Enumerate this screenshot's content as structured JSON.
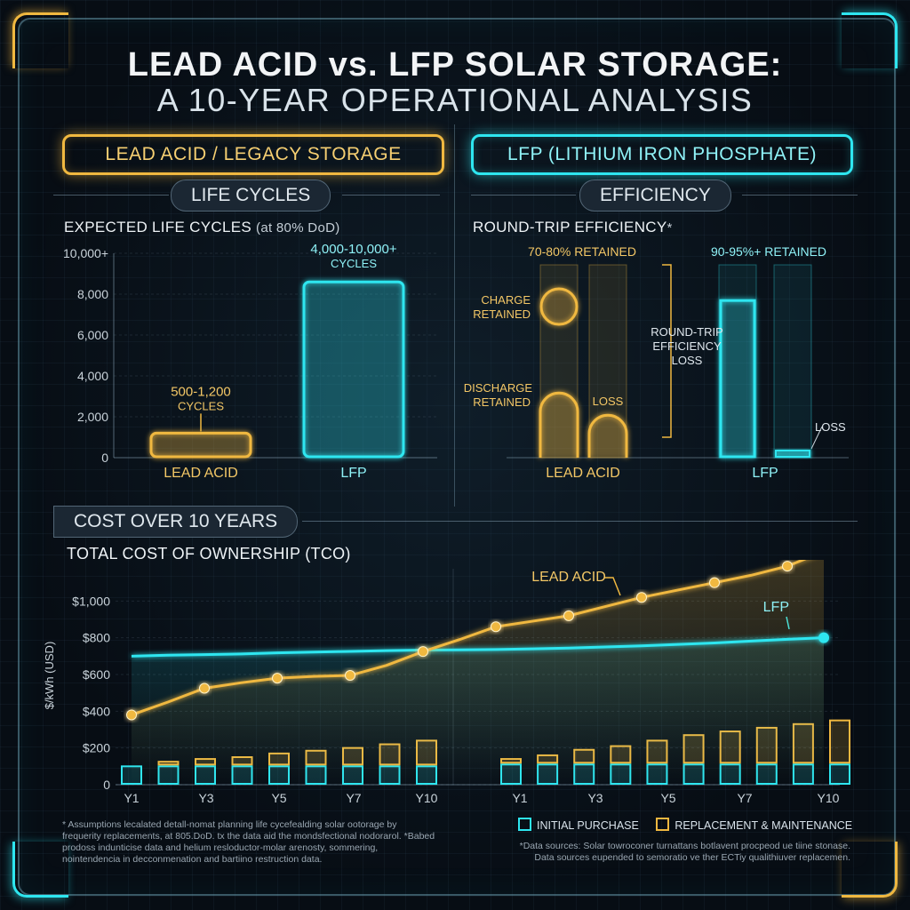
{
  "title": {
    "line1": "LEAD ACID vs. LFP SOLAR STORAGE:",
    "line2": "A 10-YEAR OPERATIONAL ANALYSIS"
  },
  "headers": {
    "lead_acid": "LEAD ACID / LEGACY STORAGE",
    "lfp": "LFP (LITHIUM IRON PHOSPHATE)"
  },
  "sections": {
    "life_cycles": "LIFE CYCLES",
    "efficiency": "EFFICIENCY",
    "cost": "COST OVER 10 YEARS"
  },
  "colors": {
    "lead_acid": "#f0b840",
    "lfp": "#2ee6f0"
  },
  "chart_data": [
    {
      "type": "bar",
      "title": "EXPECTED LIFE CYCLES",
      "title_note": "(at 80% DoD)",
      "categories": [
        "LEAD ACID",
        "LFP"
      ],
      "values": [
        1200,
        8600
      ],
      "value_labels": [
        {
          "line1": "500-1,200",
          "line2": "CYCLES"
        },
        {
          "line1": "4,000-10,000+",
          "line2": "CYCLES"
        }
      ],
      "yticks": [
        "0",
        "2,000",
        "4,000",
        "6,000",
        "8,000",
        "10,000+"
      ],
      "ylim": [
        0,
        10000
      ]
    },
    {
      "type": "bar",
      "title": "ROUND-TRIP EFFICIENCY",
      "title_note": "*",
      "categories": [
        "LEAD ACID",
        "LFP"
      ],
      "retained_labels": [
        "70-80% RETAINED",
        "90-95%+ RETAINED"
      ],
      "annotations": {
        "charge": "CHARGE RETAINED",
        "discharge": "DISCHARGE RETAINED",
        "loss_la": "LOSS",
        "round_trip": "ROUND-TRIP EFFICIENCY LOSS",
        "loss_lfp": "LOSS"
      },
      "series": [
        {
          "name": "LEAD ACID",
          "retained": 75,
          "loss": 25
        },
        {
          "name": "LFP",
          "retained": 93,
          "loss": 7
        }
      ]
    },
    {
      "type": "line",
      "title": "TOTAL COST OF OWNERSHIP (TCO)",
      "ylabel": "$/kWh (USD)",
      "yticks": [
        "0",
        "$200",
        "$400",
        "$600",
        "$800",
        "$1,000"
      ],
      "ylim": [
        0,
        1200
      ],
      "x": [
        1,
        2,
        3,
        4,
        5,
        6,
        7,
        8,
        9,
        10,
        11,
        12,
        13,
        14,
        15,
        16,
        17,
        18,
        19,
        20
      ],
      "series": [
        {
          "name": "LEAD ACID",
          "values": [
            380,
            450,
            525,
            555,
            580,
            590,
            595,
            650,
            725,
            790,
            860,
            890,
            920,
            970,
            1020,
            1060,
            1100,
            1140,
            1190,
            1270
          ]
        },
        {
          "name": "LFP",
          "values": [
            700,
            705,
            708,
            712,
            718,
            722,
            726,
            730,
            733,
            734,
            736,
            740,
            744,
            750,
            756,
            764,
            772,
            782,
            792,
            800
          ]
        }
      ],
      "markers_lead_acid": [
        0,
        2,
        4,
        6,
        8,
        10,
        12,
        14,
        16,
        18,
        19
      ],
      "series_labels": [
        "LEAD ACID",
        "LFP"
      ]
    },
    {
      "type": "bar",
      "title": "ANNUAL COST BREAKDOWN",
      "panels": [
        {
          "categories": [
            "Y1",
            "Y2",
            "Y3",
            "Y4",
            "Y5",
            "Y6",
            "Y7",
            "Y8",
            "Y10"
          ],
          "initial": [
            100,
            100,
            100,
            100,
            100,
            100,
            100,
            100,
            100
          ],
          "replacement": [
            0,
            25,
            40,
            50,
            70,
            85,
            100,
            120,
            140
          ]
        },
        {
          "categories": [
            "Y1",
            "Y2",
            "Y3",
            "Y4",
            "Y5",
            "Y6",
            "Y7",
            "Y8",
            "Y9",
            "Y10"
          ],
          "initial": [
            110,
            110,
            110,
            110,
            110,
            110,
            110,
            110,
            110,
            110
          ],
          "replacement": [
            30,
            50,
            80,
            100,
            130,
            160,
            180,
            200,
            220,
            240
          ]
        }
      ],
      "xtick_labels": [
        "Y1",
        "Y3",
        "Y5",
        "Y7",
        "Y10"
      ],
      "legend": [
        "INITIAL PURCHASE",
        "REPLACEMENT & MAINTENANCE"
      ]
    }
  ],
  "footnotes": {
    "left": "* Assumptions lecalated detall-nomat planning life cycefealding solar ootorage by frequerity replacements, at 805.DoD. tx the data aid the mondsfectional nodorarol. *Babed prodoss indunticise data and helium resloductor-molar arenosty, sommering, nointendencia in decconmenation and bartiino restruction data.",
    "right": "*Data sources: Solar towroconer turnattans botlavent procpeod ue tiine stonase. Data sources eupended to semoratio ve ther ECTiy qualithiuver replacemen."
  }
}
